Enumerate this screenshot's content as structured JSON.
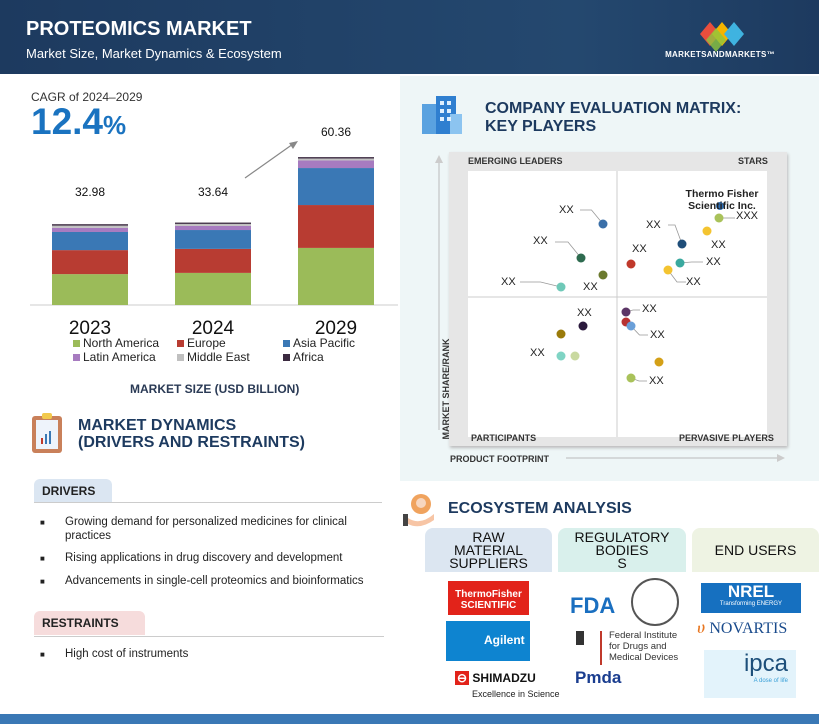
{
  "header": {
    "title": "PROTEOMICS MARKET",
    "subtitle": "Market Size, Market Dynamics & Ecosystem",
    "logo_text": "MARKETSANDMARKETS™"
  },
  "cagr": {
    "label": "CAGR of 2024–2029",
    "value": "12.4",
    "unit": "%"
  },
  "chart_data": {
    "type": "bar",
    "stacked": true,
    "categories": [
      "2023",
      "2024",
      "2029"
    ],
    "totals": [
      "32.98",
      "33.64",
      "60.36"
    ],
    "xlabel": "MARKET SIZE (USD BILLION)",
    "legend_position": "bottom",
    "series": [
      {
        "name": "North America",
        "color": "#9bbb59",
        "values": [
          12.6,
          13.1,
          23.3
        ]
      },
      {
        "name": "Europe",
        "color": "#b83c32",
        "values": [
          9.8,
          9.8,
          17.5
        ]
      },
      {
        "name": "Asia Pacific",
        "color": "#3a78b5",
        "values": [
          7.4,
          7.7,
          15.1
        ]
      },
      {
        "name": "Latin America",
        "color": "#a77bc0",
        "values": [
          1.7,
          1.7,
          3.1
        ]
      },
      {
        "name": "Middle East",
        "color": "#c0c0c0",
        "values": [
          0.9,
          0.8,
          0.8
        ]
      },
      {
        "name": "Africa",
        "color": "#3b2a40",
        "values": [
          0.58,
          0.54,
          0.56
        ]
      }
    ]
  },
  "dynamics": {
    "title_line1": "MARKET DYNAMICS",
    "title_line2": "(DRIVERS AND RESTRAINTS)",
    "drivers_label": "DRIVERS",
    "drivers": [
      "Growing demand for personalized medicines for clinical practices",
      "Rising applications in drug discovery and development",
      "Advancements in single-cell proteomics and bioinformatics"
    ],
    "restraints_label": "RESTRAINTS",
    "restraints": [
      "High cost of instruments"
    ]
  },
  "matrix": {
    "title_line1": "COMPANY EVALUATION MATRIX:",
    "title_line2": "KEY PLAYERS",
    "quadrants": {
      "top_left": "EMERGING LEADERS",
      "top_right": "STARS",
      "bottom_left": "PARTICIPANTS",
      "bottom_right": "PERVASIVE PLAYERS"
    },
    "y_axis": "MARKET SHARE/RANK",
    "x_axis": "PRODUCT FOOTPRINT",
    "highlight": "Thermo Fisher Scientific Inc.",
    "players": [
      {
        "label": "XX",
        "color": "#3a6fa8"
      },
      {
        "label": "XX",
        "color": "#2e6b4f"
      },
      {
        "label": "XX",
        "color": "#6b7a2e"
      },
      {
        "label": "XX",
        "color": "#6fc9b8"
      },
      {
        "label": "XX",
        "color": "#c0392b"
      },
      {
        "label": "XX",
        "color": "#1f4e79"
      },
      {
        "label": "XXX",
        "color": "#a9c25a"
      },
      {
        "label": "XX",
        "color": "#f4c430"
      },
      {
        "label": "XX",
        "color": "#3aa99f"
      },
      {
        "label": "XX",
        "color": "#f4c430"
      },
      {
        "label": "",
        "color": "#b83232"
      },
      {
        "label": "XX",
        "color": "#2b1a3d"
      },
      {
        "label": "",
        "color": "#9a7b0a"
      },
      {
        "label": "XX",
        "color": "#5c3566"
      },
      {
        "label": "XX",
        "color": "#6a9fd8"
      },
      {
        "label": "XX",
        "color": "#7fd4c4"
      },
      {
        "label": "",
        "color": "#c9d9a0"
      },
      {
        "label": "",
        "color": "#d4a017"
      },
      {
        "label": "XX",
        "color": "#a9c25a"
      }
    ]
  },
  "ecosystem": {
    "title": "ECOSYSTEM ANALYSIS",
    "columns": [
      {
        "heading": "RAW MATERIAL SUPPLIERS",
        "logos": [
          "ThermoFisher SCIENTIFIC",
          "Agilent",
          "SHIMADZU",
          "Excellence in Science"
        ]
      },
      {
        "heading": "REGULATORY BODIES S",
        "logos": [
          "FDA",
          "Federal Institute for Drugs and Medical Devices",
          "Pmda"
        ]
      },
      {
        "heading": "END USERS",
        "logos": [
          "NREL",
          "Transforming ENERGY",
          "NOVARTIS",
          "ipca",
          "A dose of life"
        ]
      }
    ]
  }
}
